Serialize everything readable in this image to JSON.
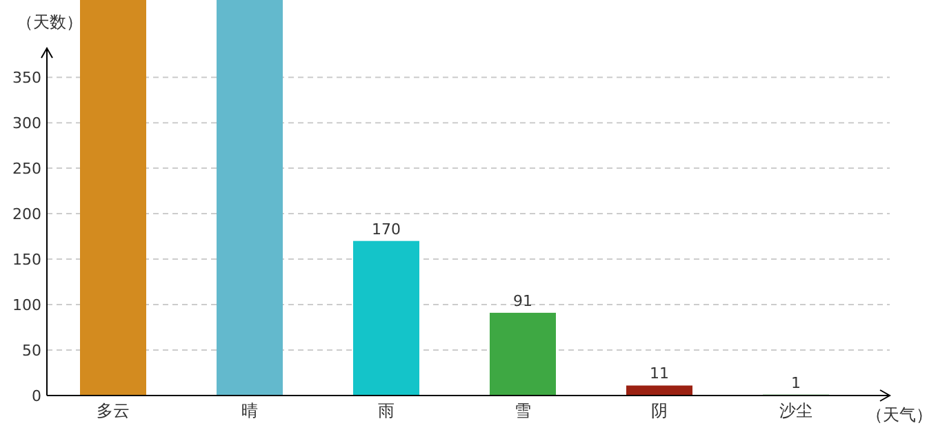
{
  "chart_data": {
    "type": "bar",
    "xlabel": "（天气）",
    "ylabel": "（天数）",
    "categories": [
      "多云",
      "晴",
      "雨",
      "雪",
      "阴",
      "沙尘"
    ],
    "values": [
      435,
      435,
      170,
      91,
      11,
      1
    ],
    "value_labels": [
      null,
      null,
      "170",
      "91",
      "11",
      "1"
    ],
    "colors": [
      "#d38b1f",
      "#63b9cd",
      "#14c4c9",
      "#3ea843",
      "#9b2112",
      "#4caf50"
    ],
    "ylim": [
      0,
      435
    ],
    "yticks": [
      0,
      50,
      100,
      150,
      200,
      250,
      300,
      350
    ],
    "grid": "y"
  }
}
